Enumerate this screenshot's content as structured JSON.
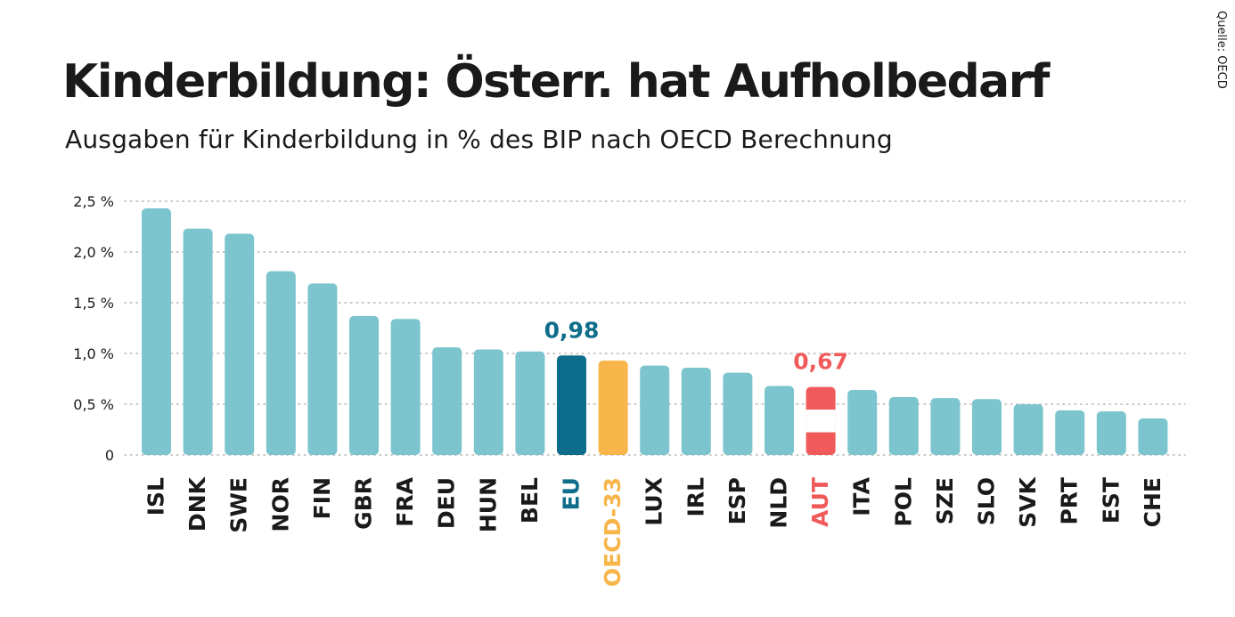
{
  "title": "Kinderbildung: Österr. hat Aufholbedarf",
  "subtitle": "Ausgaben für Kinderbildung in % des BIP nach OECD Berechnung",
  "source": "Quelle: OECD",
  "colors": {
    "default": "#7cc5ce",
    "eu": "#0e6d8a",
    "oecd": "#f7b54a",
    "aut_red": "#f05a5a",
    "aut_white": "#ffffff",
    "grid": "#b8b8b8",
    "text": "#1a1a1a"
  },
  "chart_data": {
    "type": "bar",
    "title": "Kinderbildung: Österr. hat Aufholbedarf",
    "subtitle": "Ausgaben für Kinderbildung in % des BIP nach OECD Berechnung",
    "xlabel": "",
    "ylabel": "",
    "ylim": [
      0,
      2.5
    ],
    "yticks": [
      0,
      0.5,
      1.0,
      1.5,
      2.0,
      2.5
    ],
    "ytick_labels": [
      "0",
      "0,5 %",
      "1,0 %",
      "1,5 %",
      "2,0 %",
      "2,5 %"
    ],
    "grid": true,
    "categories": [
      "ISL",
      "DNK",
      "SWE",
      "NOR",
      "FIN",
      "GBR",
      "FRA",
      "DEU",
      "HUN",
      "BEL",
      "EU",
      "OECD-33",
      "LUX",
      "IRL",
      "ESP",
      "NLD",
      "AUT",
      "ITA",
      "POL",
      "SZE",
      "SLO",
      "SVK",
      "PRT",
      "EST",
      "CHE"
    ],
    "values": [
      2.43,
      2.23,
      2.18,
      1.81,
      1.69,
      1.37,
      1.34,
      1.06,
      1.04,
      1.02,
      0.98,
      0.93,
      0.88,
      0.86,
      0.81,
      0.68,
      0.67,
      0.64,
      0.57,
      0.56,
      0.55,
      0.5,
      0.44,
      0.43,
      0.36
    ],
    "highlights": {
      "EU": {
        "color": "eu",
        "label": "0,98"
      },
      "OECD-33": {
        "color": "oecd"
      },
      "AUT": {
        "color": "flag",
        "label": "0,67"
      }
    }
  }
}
